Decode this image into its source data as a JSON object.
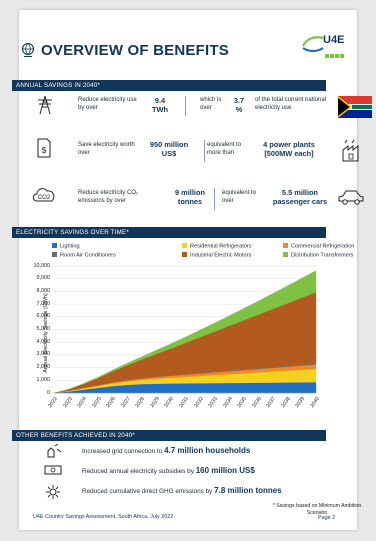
{
  "title": "OVERVIEW OF BENEFITS",
  "logo_text": "U4E",
  "section_annual": "ANNUAL SAVINGS IN 2040*",
  "row1": {
    "label": "Reduce electricity use by over",
    "value": "9.4",
    "unit": "TWh",
    "mid": "which is over",
    "pct_value": "3.7",
    "pct_unit": "%",
    "right": "of the total current national electricity use"
  },
  "row2": {
    "label": "Save electricity worth over",
    "value": "950 million",
    "unit": "US$",
    "mid": "equivalent to more than",
    "right_value": "4 power plants",
    "right_unit": "[500MW each]"
  },
  "row3": {
    "label": "Reduce electricity CO₂ emissions by over",
    "value": "9 million",
    "unit": "tonnes",
    "mid": "equivalent to over",
    "right_value": "5.5 million",
    "right_unit": "passenger cars"
  },
  "section_chart": "ELECTRICITY SAVINGS OVER TIME*",
  "icons": {
    "title": "globe-icon",
    "power": "power-tower-icon",
    "money": "bill-icon",
    "co2": "co2-cloud-icon",
    "plant": "power-plant-icon",
    "car": "car-icon",
    "grid": "grid-connection-icon",
    "subsidy": "cash-icon",
    "ghg": "emissions-icon",
    "flag": "south-africa-flag"
  },
  "colors": {
    "navy": "#12365a",
    "lighting": "#1f6fc4",
    "residential": "#f2d21e",
    "commercial": "#f08a24",
    "room_ac": "#6b6b6b",
    "motors": "#b35a1f",
    "transformers": "#7dc242"
  },
  "chart_data": {
    "type": "area",
    "stacked": true,
    "ylabel": "Annual Electricity Savings (GWh)",
    "xlabel": "",
    "ylim": [
      0,
      10000
    ],
    "yticks": [
      "0",
      "1,000",
      "2,000",
      "3,000",
      "4,000",
      "5,000",
      "6,000",
      "7,000",
      "8,000",
      "9,000",
      "10,000"
    ],
    "x": [
      "2022",
      "2023",
      "2024",
      "2025",
      "2026",
      "2027",
      "2028",
      "2029",
      "2030",
      "2031",
      "2032",
      "2033",
      "2034",
      "2035",
      "2036",
      "2037",
      "2038",
      "2039",
      "2040"
    ],
    "legend_position": "top",
    "series": [
      {
        "name": "Lighting",
        "color": "#1f6fc4",
        "values": [
          0,
          120,
          260,
          400,
          540,
          640,
          700,
          730,
          750,
          760,
          770,
          780,
          790,
          800,
          810,
          820,
          830,
          840,
          850
        ]
      },
      {
        "name": "Residential Refrigerators",
        "color": "#f2d21e",
        "values": [
          0,
          40,
          90,
          140,
          200,
          260,
          320,
          380,
          440,
          500,
          560,
          620,
          680,
          740,
          800,
          860,
          920,
          980,
          1040
        ]
      },
      {
        "name": "Commercial Refrigeration",
        "color": "#f08a24",
        "values": [
          0,
          20,
          40,
          60,
          80,
          100,
          120,
          140,
          160,
          180,
          200,
          220,
          240,
          260,
          280,
          300,
          320,
          340,
          360
        ]
      },
      {
        "name": "Room Air Conditioners",
        "color": "#6b6b6b",
        "values": [
          0,
          5,
          10,
          15,
          20,
          25,
          30,
          35,
          40,
          45,
          50,
          55,
          60,
          65,
          70,
          75,
          80,
          85,
          90
        ]
      },
      {
        "name": "Industrial Electric Motors",
        "color": "#b35a1f",
        "values": [
          0,
          100,
          300,
          550,
          850,
          1150,
          1450,
          1780,
          2100,
          2450,
          2800,
          3150,
          3500,
          3850,
          4200,
          4550,
          4900,
          5250,
          5600
        ]
      },
      {
        "name": "Distribution Transformers",
        "color": "#7dc242",
        "values": [
          0,
          15,
          40,
          70,
          110,
          160,
          220,
          290,
          370,
          460,
          560,
          670,
          790,
          920,
          1060,
          1210,
          1370,
          1530,
          1700
        ]
      }
    ]
  },
  "section_other": "OTHER BENEFITS ACHIEVED IN 2040*",
  "other": [
    {
      "text": "Increased grid connection to",
      "value": "4.7 million households"
    },
    {
      "text": "Reduced annual electricity subsidies by",
      "value": "160 million US$"
    },
    {
      "text": "Reduced cumulative direct GHG emissions by",
      "value": "7.8 million tonnes"
    }
  ],
  "footnote": "* Savings based on Minimum Ambition Scenario",
  "footer_left": "U4E Country Savings Assessment, South Africa, July 2022",
  "footer_right": "Page 2"
}
